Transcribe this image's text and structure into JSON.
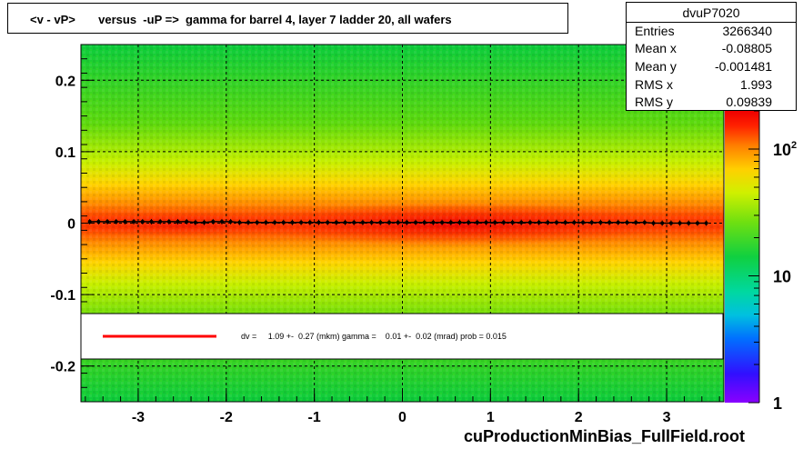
{
  "title": "<v - vP>       versus  -uP =>  gamma for barrel 4, layer 7 ladder 20, all wafers",
  "stats": {
    "name": "dvuP7020",
    "rows": [
      {
        "label": "Entries",
        "value": "3266340"
      },
      {
        "label": "Mean x",
        "value": "-0.08805"
      },
      {
        "label": "Mean y",
        "value": "-0.001481"
      },
      {
        "label": "RMS x",
        "value": "1.993"
      },
      {
        "label": "RMS y",
        "value": "0.09839"
      }
    ]
  },
  "fit_legend": "dv =     1.09 +-  0.27 (mkm) gamma =    0.01 +-  0.02 (mrad) prob = 0.015",
  "footer": "cuProductionMinBias_FullField.root",
  "colors": {
    "fit_line": "#ff0000",
    "profile_points": "#000000"
  },
  "chart_data": {
    "type": "heatmap",
    "xlim": [
      -3.65,
      3.65
    ],
    "ylim": [
      -0.25,
      0.25
    ],
    "x_ticks": [
      -3,
      -2,
      -1,
      0,
      1,
      2,
      3
    ],
    "y_ticks": [
      -0.2,
      -0.1,
      0,
      0.1,
      0.2
    ],
    "grid": true,
    "z_scale": "log",
    "z_range": [
      1,
      200
    ],
    "z_ticks": [
      {
        "value": 1,
        "label": "1"
      },
      {
        "value": 10,
        "label": "10"
      },
      {
        "value": 100,
        "label": "10^2"
      }
    ],
    "profile": {
      "x_start": -3.55,
      "x_step": 0.1,
      "y_values": [
        0.002,
        0.002,
        0.002,
        0.002,
        0.002,
        0.002,
        0.002,
        0.002,
        0.002,
        0.002,
        0.002,
        0.002,
        0.001,
        0.001,
        0.002,
        0.002,
        0.002,
        0.001,
        0.001,
        0.001,
        0.001,
        0.001,
        0.001,
        0.001,
        0.001,
        0.001,
        0.001,
        0.001,
        0.001,
        0.001,
        0.001,
        0.001,
        0.001,
        0.001,
        0.001,
        0.001,
        0.001,
        0.001,
        0.001,
        0.001,
        0.001,
        0.001,
        0.001,
        0.001,
        0.001,
        0.001,
        0.001,
        0.001,
        0.001,
        0.001,
        0.001,
        0.001,
        0.001,
        0.001,
        0.001,
        0.001,
        0.001,
        0.001,
        0.001,
        0.001,
        0.001,
        0.001,
        0.001,
        0.001,
        0.0,
        0.0,
        0.0,
        0.0,
        0.0,
        0.0,
        0.0
      ]
    }
  }
}
